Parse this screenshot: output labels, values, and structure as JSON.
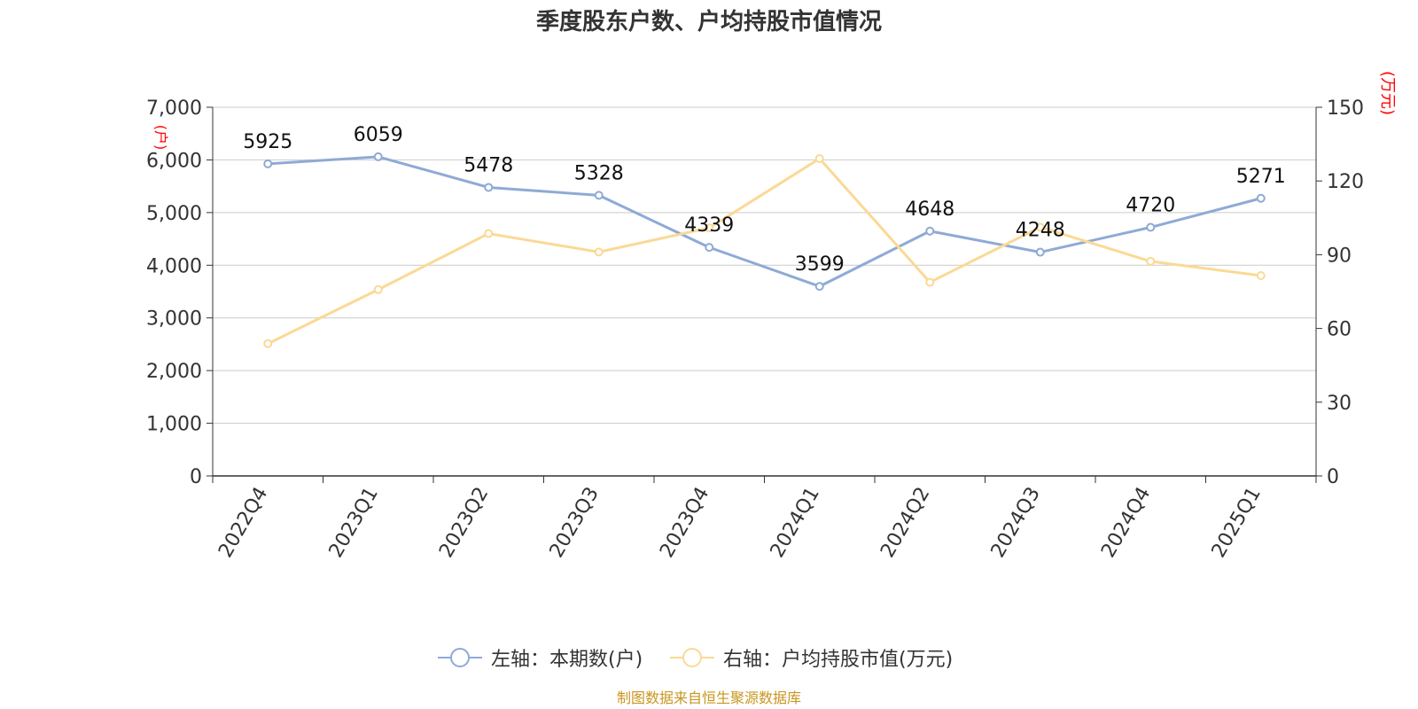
{
  "title": "季度股东户数、户均持股市值情况",
  "source": "制图数据来自恒生聚源数据库",
  "colors": {
    "left_series": "#8eaad6",
    "right_series": "#fbd995",
    "grid": "#cccccc",
    "axis": "#333333",
    "axis_unit": "#ff0000",
    "text": "#333333",
    "source": "#c8961e"
  },
  "chart_data": {
    "type": "line",
    "categories": [
      "2022Q4",
      "2023Q1",
      "2023Q2",
      "2023Q3",
      "2023Q4",
      "2024Q1",
      "2024Q2",
      "2024Q3",
      "2024Q4",
      "2025Q1"
    ],
    "y_left": {
      "unit": "(户)",
      "range": [
        0,
        7000
      ],
      "ticks": [
        "0",
        "1,000",
        "2,000",
        "3,000",
        "4,000",
        "5,000",
        "6,000",
        "7,000"
      ]
    },
    "y_right": {
      "unit": "(万元)",
      "range": [
        0,
        150
      ],
      "ticks": [
        "0",
        "30",
        "60",
        "90",
        "120",
        "150"
      ]
    },
    "grid": true,
    "legend_position": "bottom",
    "series": [
      {
        "name": "左轴：本期数(户)",
        "axis": "left",
        "values": [
          5925,
          6059,
          5478,
          5328,
          4339,
          3599,
          4648,
          4248,
          4720,
          5271
        ],
        "labels": [
          "5925",
          "6059",
          "5478",
          "5328",
          "4339",
          "3599",
          "4648",
          "4248",
          "4720",
          "5271"
        ]
      },
      {
        "name": "右轴：户均持股市值(万元)",
        "axis": "right",
        "values": [
          53.8,
          75.8,
          98.6,
          91.1,
          100.9,
          129.1,
          78.8,
          101.2,
          87.3,
          81.5
        ]
      }
    ]
  }
}
